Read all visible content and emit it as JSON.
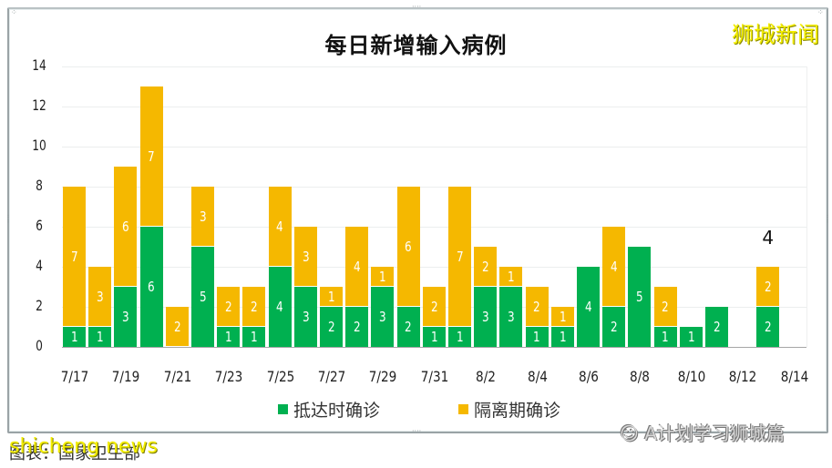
{
  "title": "每日新增输入病例",
  "brand_watermark": "狮城新闻",
  "footer": {
    "caption": "图表：国家卫生部",
    "watermark_left": "shicheng news",
    "watermark_right": "A计划学习狮城篇"
  },
  "legend": [
    {
      "label": "抵达时确诊",
      "color": "#00b050"
    },
    {
      "label": "隔离期确诊",
      "color": "#f5b800"
    }
  ],
  "y_ticks": [
    "0",
    "2",
    "4",
    "6",
    "8",
    "10",
    "12",
    "14"
  ],
  "x_ticks": [
    "7/17",
    "7/19",
    "7/21",
    "7/23",
    "7/25",
    "7/27",
    "7/29",
    "7/31",
    "8/2",
    "8/4",
    "8/6",
    "8/8",
    "8/10",
    "8/12",
    "8/14"
  ],
  "annotation": {
    "label": "4",
    "date": "8/13"
  },
  "chart_data": {
    "type": "bar",
    "stacked": true,
    "title": "每日新增输入病例",
    "xlabel": "",
    "ylabel": "",
    "ylim": [
      0,
      14
    ],
    "grid": true,
    "legend_position": "bottom",
    "categories": [
      "7/17",
      "7/18",
      "7/19",
      "7/20",
      "7/21",
      "7/22",
      "7/23",
      "7/24",
      "7/25",
      "7/26",
      "7/27",
      "7/28",
      "7/29",
      "7/30",
      "7/31",
      "8/1",
      "8/2",
      "8/3",
      "8/4",
      "8/5",
      "8/6",
      "8/7",
      "8/8",
      "8/9",
      "8/10",
      "8/11",
      "8/12",
      "8/13",
      "8/14"
    ],
    "series": [
      {
        "name": "抵达时确诊",
        "color": "#00b050",
        "values": [
          1,
          1,
          3,
          6,
          0,
          5,
          1,
          1,
          4,
          3,
          2,
          2,
          3,
          2,
          1,
          1,
          3,
          3,
          1,
          1,
          4,
          2,
          5,
          1,
          1,
          2,
          0,
          2,
          0
        ]
      },
      {
        "name": "隔离期确诊",
        "color": "#f5b800",
        "values": [
          7,
          3,
          6,
          7,
          2,
          3,
          2,
          2,
          4,
          3,
          1,
          4,
          1,
          6,
          2,
          7,
          2,
          1,
          2,
          1,
          0,
          4,
          0,
          2,
          0,
          0,
          0,
          2,
          0
        ]
      }
    ],
    "annotations": [
      {
        "x": "8/13",
        "text": "4"
      }
    ]
  }
}
